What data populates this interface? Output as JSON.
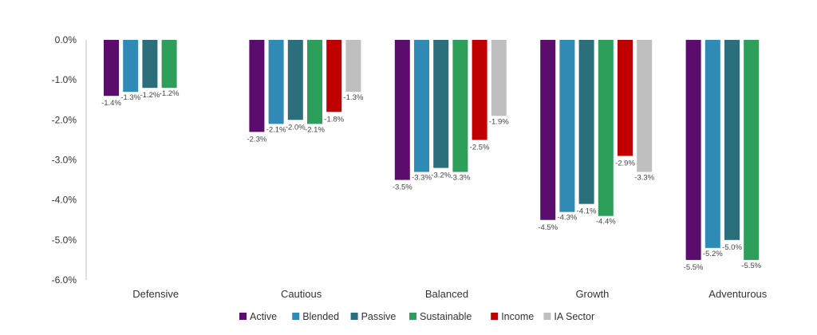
{
  "chart_data": {
    "type": "bar",
    "title": "",
    "xlabel": "",
    "ylabel": "",
    "ylim": [
      -6.0,
      0.0
    ],
    "yticks": [
      0.0,
      -1.0,
      -2.0,
      -3.0,
      -4.0,
      -5.0,
      -6.0
    ],
    "ytick_labels": [
      "0.0%",
      "-1.0%",
      "-2.0%",
      "-3.0%",
      "-4.0%",
      "-5.0%",
      "-6.0%"
    ],
    "grid": false,
    "legend_position": "bottom",
    "categories": [
      "Defensive",
      "Cautious",
      "Balanced",
      "Growth",
      "Adventurous"
    ],
    "series": [
      {
        "name": "Active",
        "color": "#5b0d6e",
        "values": [
          -1.4,
          -2.3,
          -3.5,
          -4.5,
          -5.5
        ],
        "labels": [
          "-1.4%",
          "-2.3%",
          "-3.5%",
          "-4.5%",
          "-5.5%"
        ]
      },
      {
        "name": "Blended",
        "color": "#2f8ab5",
        "values": [
          -1.3,
          -2.1,
          -3.3,
          -4.3,
          -5.2
        ],
        "labels": [
          "-1.3%",
          "-2.1%",
          "-3.3%",
          "-4.3%",
          "-5.2%"
        ]
      },
      {
        "name": "Passive",
        "color": "#2a6f7b",
        "values": [
          -1.2,
          -2.0,
          -3.2,
          -4.1,
          -5.0
        ],
        "labels": [
          "-1.2%",
          "-2.0%",
          "-3.2%",
          "-4.1%",
          "-5.0%"
        ]
      },
      {
        "name": "Sustainable",
        "color": "#2e9e5b",
        "values": [
          -1.2,
          -2.1,
          -3.3,
          -4.4,
          -5.5
        ],
        "labels": [
          "-1.2%",
          "-2.1%",
          "-3.3%",
          "-4.4%",
          "-5.5%"
        ]
      },
      {
        "name": "Income",
        "color": "#c00000",
        "values": [
          null,
          -1.8,
          -2.5,
          -2.9,
          null
        ],
        "labels": [
          null,
          "-1.8%",
          "-2.5%",
          "-2.9%",
          null
        ]
      },
      {
        "name": "IA Sector",
        "color": "#bfbfbf",
        "values": [
          null,
          -1.3,
          -1.9,
          -3.3,
          null
        ],
        "labels": [
          null,
          "-1.3%",
          "-1.9%",
          "-3.3%",
          null
        ]
      }
    ]
  }
}
